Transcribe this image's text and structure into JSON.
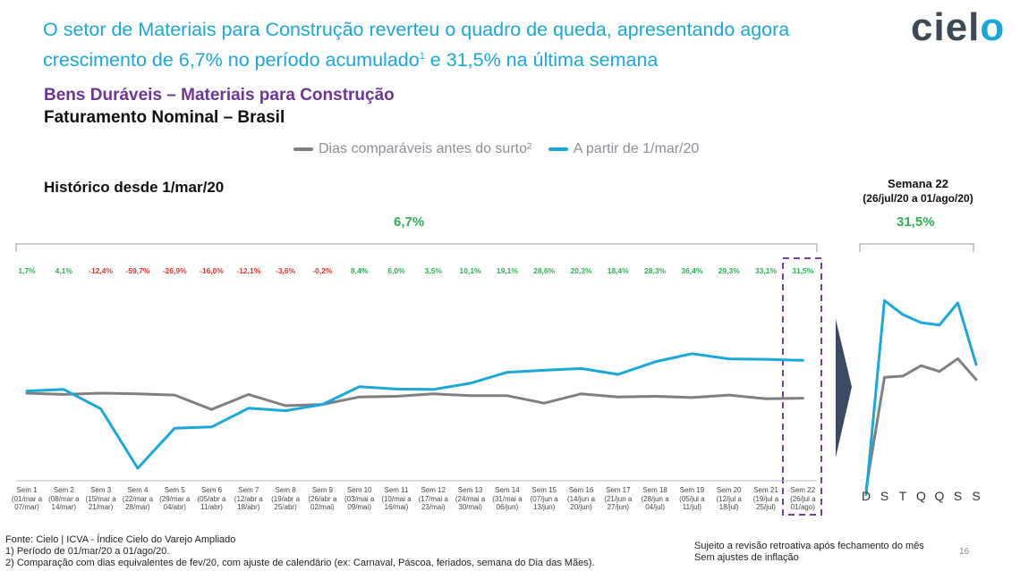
{
  "headline": {
    "line1": "O setor de Materiais para Construção reverteu o quadro de queda, apresentando agora",
    "line2_a": "crescimento de 6,7% no período acumulado",
    "line2_sup": "1",
    "line2_b": " e 31,5% na última semana"
  },
  "logo": {
    "text_a": "ciel",
    "text_b": "o"
  },
  "subtitle1": "Bens Duráveis – Materiais para Construção",
  "subtitle2": "Faturamento Nominal – Brasil",
  "legend": {
    "gray_label": "Dias comparáveis antes do surto²",
    "blue_label": "A partir de 1/mar/20"
  },
  "colors": {
    "blue": "#1aa7d9",
    "gray": "#808080",
    "green": "#2bb04f",
    "red": "#e0332b",
    "purple": "#7a3e9d",
    "navy": "#3d4a66"
  },
  "hist_title": "Histórico desde 1/mar/20",
  "week_title": "Semana 22",
  "week_subtitle": "(26/jul/20 a 01/ago/20)",
  "total_pct": "6,7%",
  "week_pct": "31,5%",
  "chart_data": [
    {
      "type": "line",
      "title": "Histórico desde 1/mar/20",
      "categories": [
        "Sem 1",
        "Sem 2",
        "Sem 3",
        "Sem 4",
        "Sem 5",
        "Sem 6",
        "Sem 7",
        "Sem 8",
        "Sem 9",
        "Sem 10",
        "Sem 11",
        "Sem 12",
        "Sem 13",
        "Sem 14",
        "Sem 15",
        "Sem 16",
        "Sem 17",
        "Sem 18",
        "Sem 19",
        "Sem 20",
        "Sem 21",
        "Sem 22"
      ],
      "category_dates": [
        "(01/mar a 07/mar)",
        "(08/mar a 14/mar)",
        "(15/mar a 21/mar)",
        "(22/mar a 28/mar)",
        "(29/mar a 04/abr)",
        "(05/abr a 11/abr)",
        "(12/abr a 18/abr)",
        "(19/abr a 25/abr)",
        "(26/abr a 02/mai)",
        "(03/mai a 09/mai)",
        "(10/mai a 16/mai)",
        "(17/mai a 23/mai)",
        "(24/mai a 30/mai)",
        "(31/mai a 06/jun)",
        "(07/jun a 13/jun)",
        "(14/jun a 20/jun)",
        "(21/jun a 27/jun)",
        "(28/jun a 04/jul)",
        "(05/jul a 11/jul)",
        "(12/jul a 18/jul)",
        "(19/jul a 25/jul)",
        "(26/jul a 01/ago)"
      ],
      "growth_labels": [
        "1,7%",
        "4,1%",
        "-12,4%",
        "-59,7%",
        "-26,9%",
        "-16,0%",
        "-12,1%",
        "-3,6%",
        "-0,2%",
        "8,4%",
        "6,0%",
        "3,5%",
        "10,1%",
        "19,1%",
        "28,6%",
        "20,3%",
        "18,4%",
        "28,3%",
        "36,4%",
        "29,3%",
        "33,1%",
        "31,5%"
      ],
      "series": [
        {
          "name": "Dias comparáveis antes do surto²",
          "color": "#808080",
          "values": [
            100,
            99,
            100,
            99.5,
            98.5,
            87,
            99,
            90,
            91,
            97,
            97.5,
            99.5,
            98,
            98,
            92,
            99.5,
            97,
            97.5,
            96.5,
            98.5,
            95.5,
            96
          ]
        },
        {
          "name": "A partir de 1/mar/20",
          "color": "#1aa7d9",
          "values": [
            101.7,
            103,
            87.6,
            40,
            72,
            73,
            88,
            86,
            91,
            105.2,
            103.3,
            103,
            107.9,
            116.7,
            118.3,
            119.7,
            115,
            125.1,
            131.6,
            127.4,
            127.1,
            126.2
          ]
        }
      ],
      "ylim": [
        0,
        200
      ]
    },
    {
      "type": "line",
      "title": "Semana 22",
      "categories": [
        "D",
        "S",
        "T",
        "Q",
        "Q",
        "S",
        "S"
      ],
      "series": [
        {
          "name": "Dias comparáveis antes do surto²",
          "color": "#808080",
          "values": [
            10,
            106,
            107,
            116,
            111,
            122,
            104
          ]
        },
        {
          "name": "A partir de 1/mar/20",
          "color": "#1aa7d9",
          "values": [
            5,
            172,
            160,
            153,
            151,
            170,
            117
          ]
        }
      ],
      "ylim": [
        0,
        200
      ]
    }
  ],
  "footer": {
    "source": "Fonte: Cielo | ICVA - Índice Cielo do Varejo Ampliado",
    "note1": "1)    Período de 01/mar/20 a 01/ago/20.",
    "note2": "2)    Comparação com dias equivalentes de fev/20, com ajuste de calendário (ex: Carnaval, Páscoa, feriados, semana do Dia das Mães).",
    "right1": "Sujeito a revisão retroativa após fechamento do mês",
    "right2": "Sem ajustes de inflação",
    "page": "16"
  }
}
